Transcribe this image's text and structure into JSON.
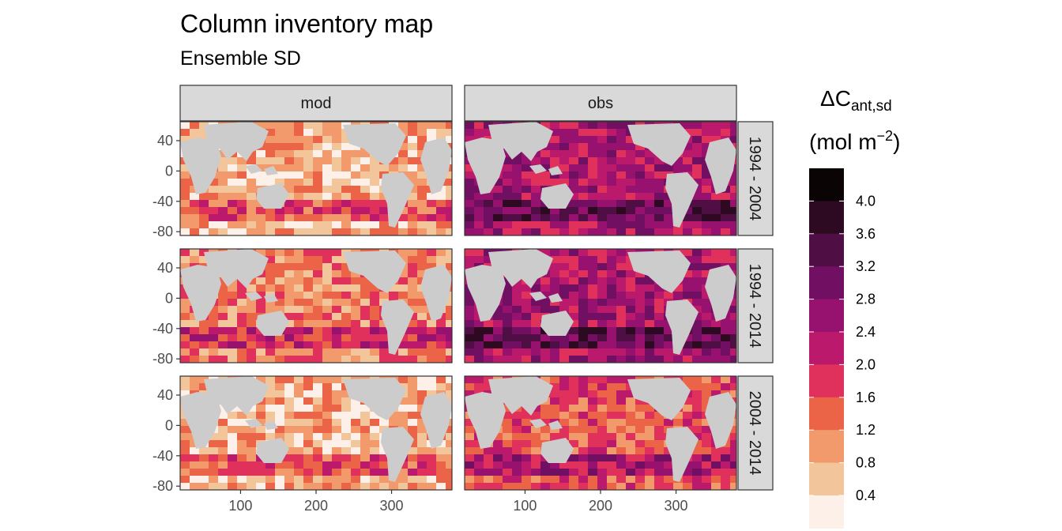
{
  "title": "Column inventory map",
  "subtitle": "Ensemble SD",
  "chart_data": {
    "type": "heatmap",
    "description_role": "faceted global ocean maps of ensemble standard deviation of column inventory",
    "facet_columns": [
      "mod",
      "obs"
    ],
    "facet_rows": [
      "1994 - 2004",
      "1994 - 2014",
      "2004 - 2014"
    ],
    "x_ticks": [
      "100",
      "200",
      "300"
    ],
    "x_tick_values": [
      100,
      200,
      300
    ],
    "y_ticks": [
      "40",
      "0",
      "-40",
      "-80"
    ],
    "y_tick_values": [
      40,
      0,
      -40,
      -80
    ],
    "xlim": [
      20,
      380
    ],
    "ylim": [
      -85,
      65
    ],
    "legend": {
      "title_main": "ΔC",
      "title_sub": "ant,sd",
      "title_unit": "(mol m",
      "title_unit_sup": "−2",
      "title_unit_close": ")",
      "labels": [
        "4.0",
        "3.6",
        "3.2",
        "2.8",
        "2.4",
        "2.0",
        "1.6",
        "1.2",
        "0.8",
        "0.4"
      ],
      "bins": [
        4.4,
        4.0,
        3.6,
        3.2,
        2.8,
        2.4,
        2.0,
        1.6,
        1.2,
        0.8,
        0.4
      ],
      "colors": [
        "#0b0405",
        "#2d0a22",
        "#4f0f45",
        "#711062",
        "#97116e",
        "#bb1a6c",
        "#e0315c",
        "#ec6448",
        "#f39a6c",
        "#f3c59a",
        "#fcf0e8"
      ]
    },
    "land_color": "#cccccc",
    "panel_mean_levels": [
      {
        "facet": "mod / 1994 - 2004",
        "typical": 0.8
      },
      {
        "facet": "obs / 1994 - 2004",
        "typical": 2.4
      },
      {
        "facet": "mod / 1994 - 2014",
        "typical": 1.2
      },
      {
        "facet": "obs / 1994 - 2014",
        "typical": 2.4
      },
      {
        "facet": "mod / 2004 - 2014",
        "typical": 0.8
      },
      {
        "facet": "obs / 2004 - 2014",
        "typical": 1.6
      }
    ]
  }
}
